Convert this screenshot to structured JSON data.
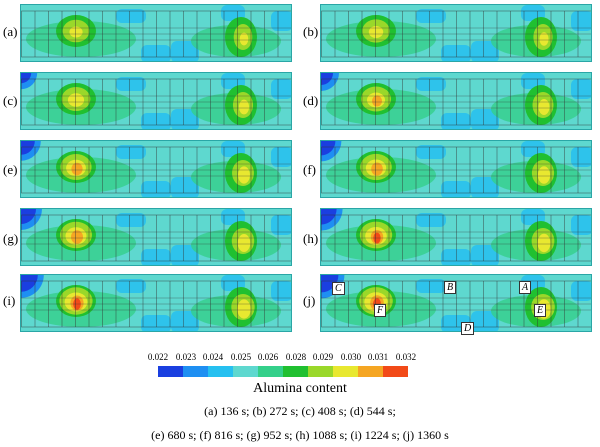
{
  "panels": [
    {
      "label": "(a)",
      "core_intensity": 0.1
    },
    {
      "label": "(b)",
      "core_intensity": 0.2
    },
    {
      "label": "(c)",
      "core_intensity": 0.35
    },
    {
      "label": "(d)",
      "core_intensity": 0.5
    },
    {
      "label": "(e)",
      "core_intensity": 0.65
    },
    {
      "label": "(f)",
      "core_intensity": 0.7
    },
    {
      "label": "(g)",
      "core_intensity": 0.75
    },
    {
      "label": "(h)",
      "core_intensity": 0.8
    },
    {
      "label": "(i)",
      "core_intensity": 0.9
    },
    {
      "label": "(j)",
      "core_intensity": 0.95
    }
  ],
  "markers": {
    "A": "A",
    "B": "B",
    "C": "C",
    "D": "D",
    "E": "E",
    "F": "F"
  },
  "colorbar": {
    "ticks": [
      "0.022",
      "0.023",
      "0.024",
      "0.025",
      "0.026",
      "0.028",
      "0.029",
      "0.030",
      "0.031",
      "0.032"
    ],
    "colors": [
      "#1a3fe0",
      "#1e8ff2",
      "#26c0f0",
      "#5ed8cf",
      "#34d08a",
      "#20c030",
      "#9ad82a",
      "#e8e830",
      "#f5a623",
      "#f24a18"
    ]
  },
  "legend_title": "Alumina content",
  "caption_line1": "(a) 136 s; (b) 272 s; (c) 408 s; (d) 544 s;",
  "caption_line2": "(e) 680 s; (f) 816 s; (g) 952 s; (h) 1088 s; (i) 1224 s; (j) 1360 s"
}
